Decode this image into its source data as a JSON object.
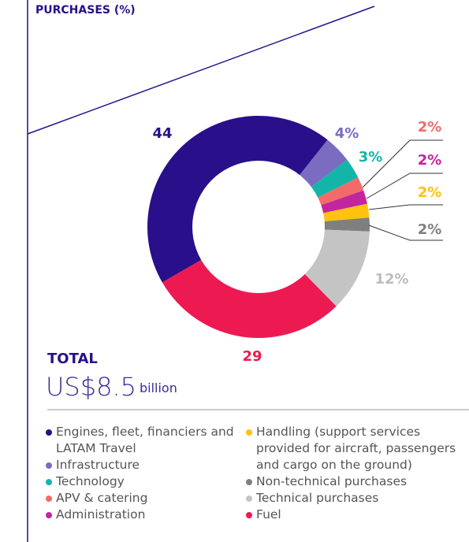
{
  "chart_data": {
    "type": "donut",
    "title": "PURCHASES (%)",
    "total_label": "TOTAL",
    "total_value": "US$8.5",
    "total_unit": "billion",
    "categories": [
      "Engines, fleet, financiers and LATAM Travel",
      "Infrastructure",
      "Technology",
      "APV & catering",
      "Administration",
      "Handling (support services provided for aircraft, passengers and cargo on the ground)",
      "Non-technical purchases",
      "Technical purchases",
      "Fuel"
    ],
    "values": [
      44,
      4,
      3,
      2,
      2,
      2,
      2,
      12,
      29
    ],
    "value_labels": [
      "44",
      "4%",
      "3%",
      "2%",
      "2%",
      "2%",
      "2%",
      "12%",
      "29"
    ],
    "colors": [
      "#2a0f8a",
      "#7b6bc1",
      "#13b5a8",
      "#f26b6b",
      "#c2269f",
      "#ffc20e",
      "#7f7f7f",
      "#c4c4c4",
      "#ed1a52"
    ]
  }
}
